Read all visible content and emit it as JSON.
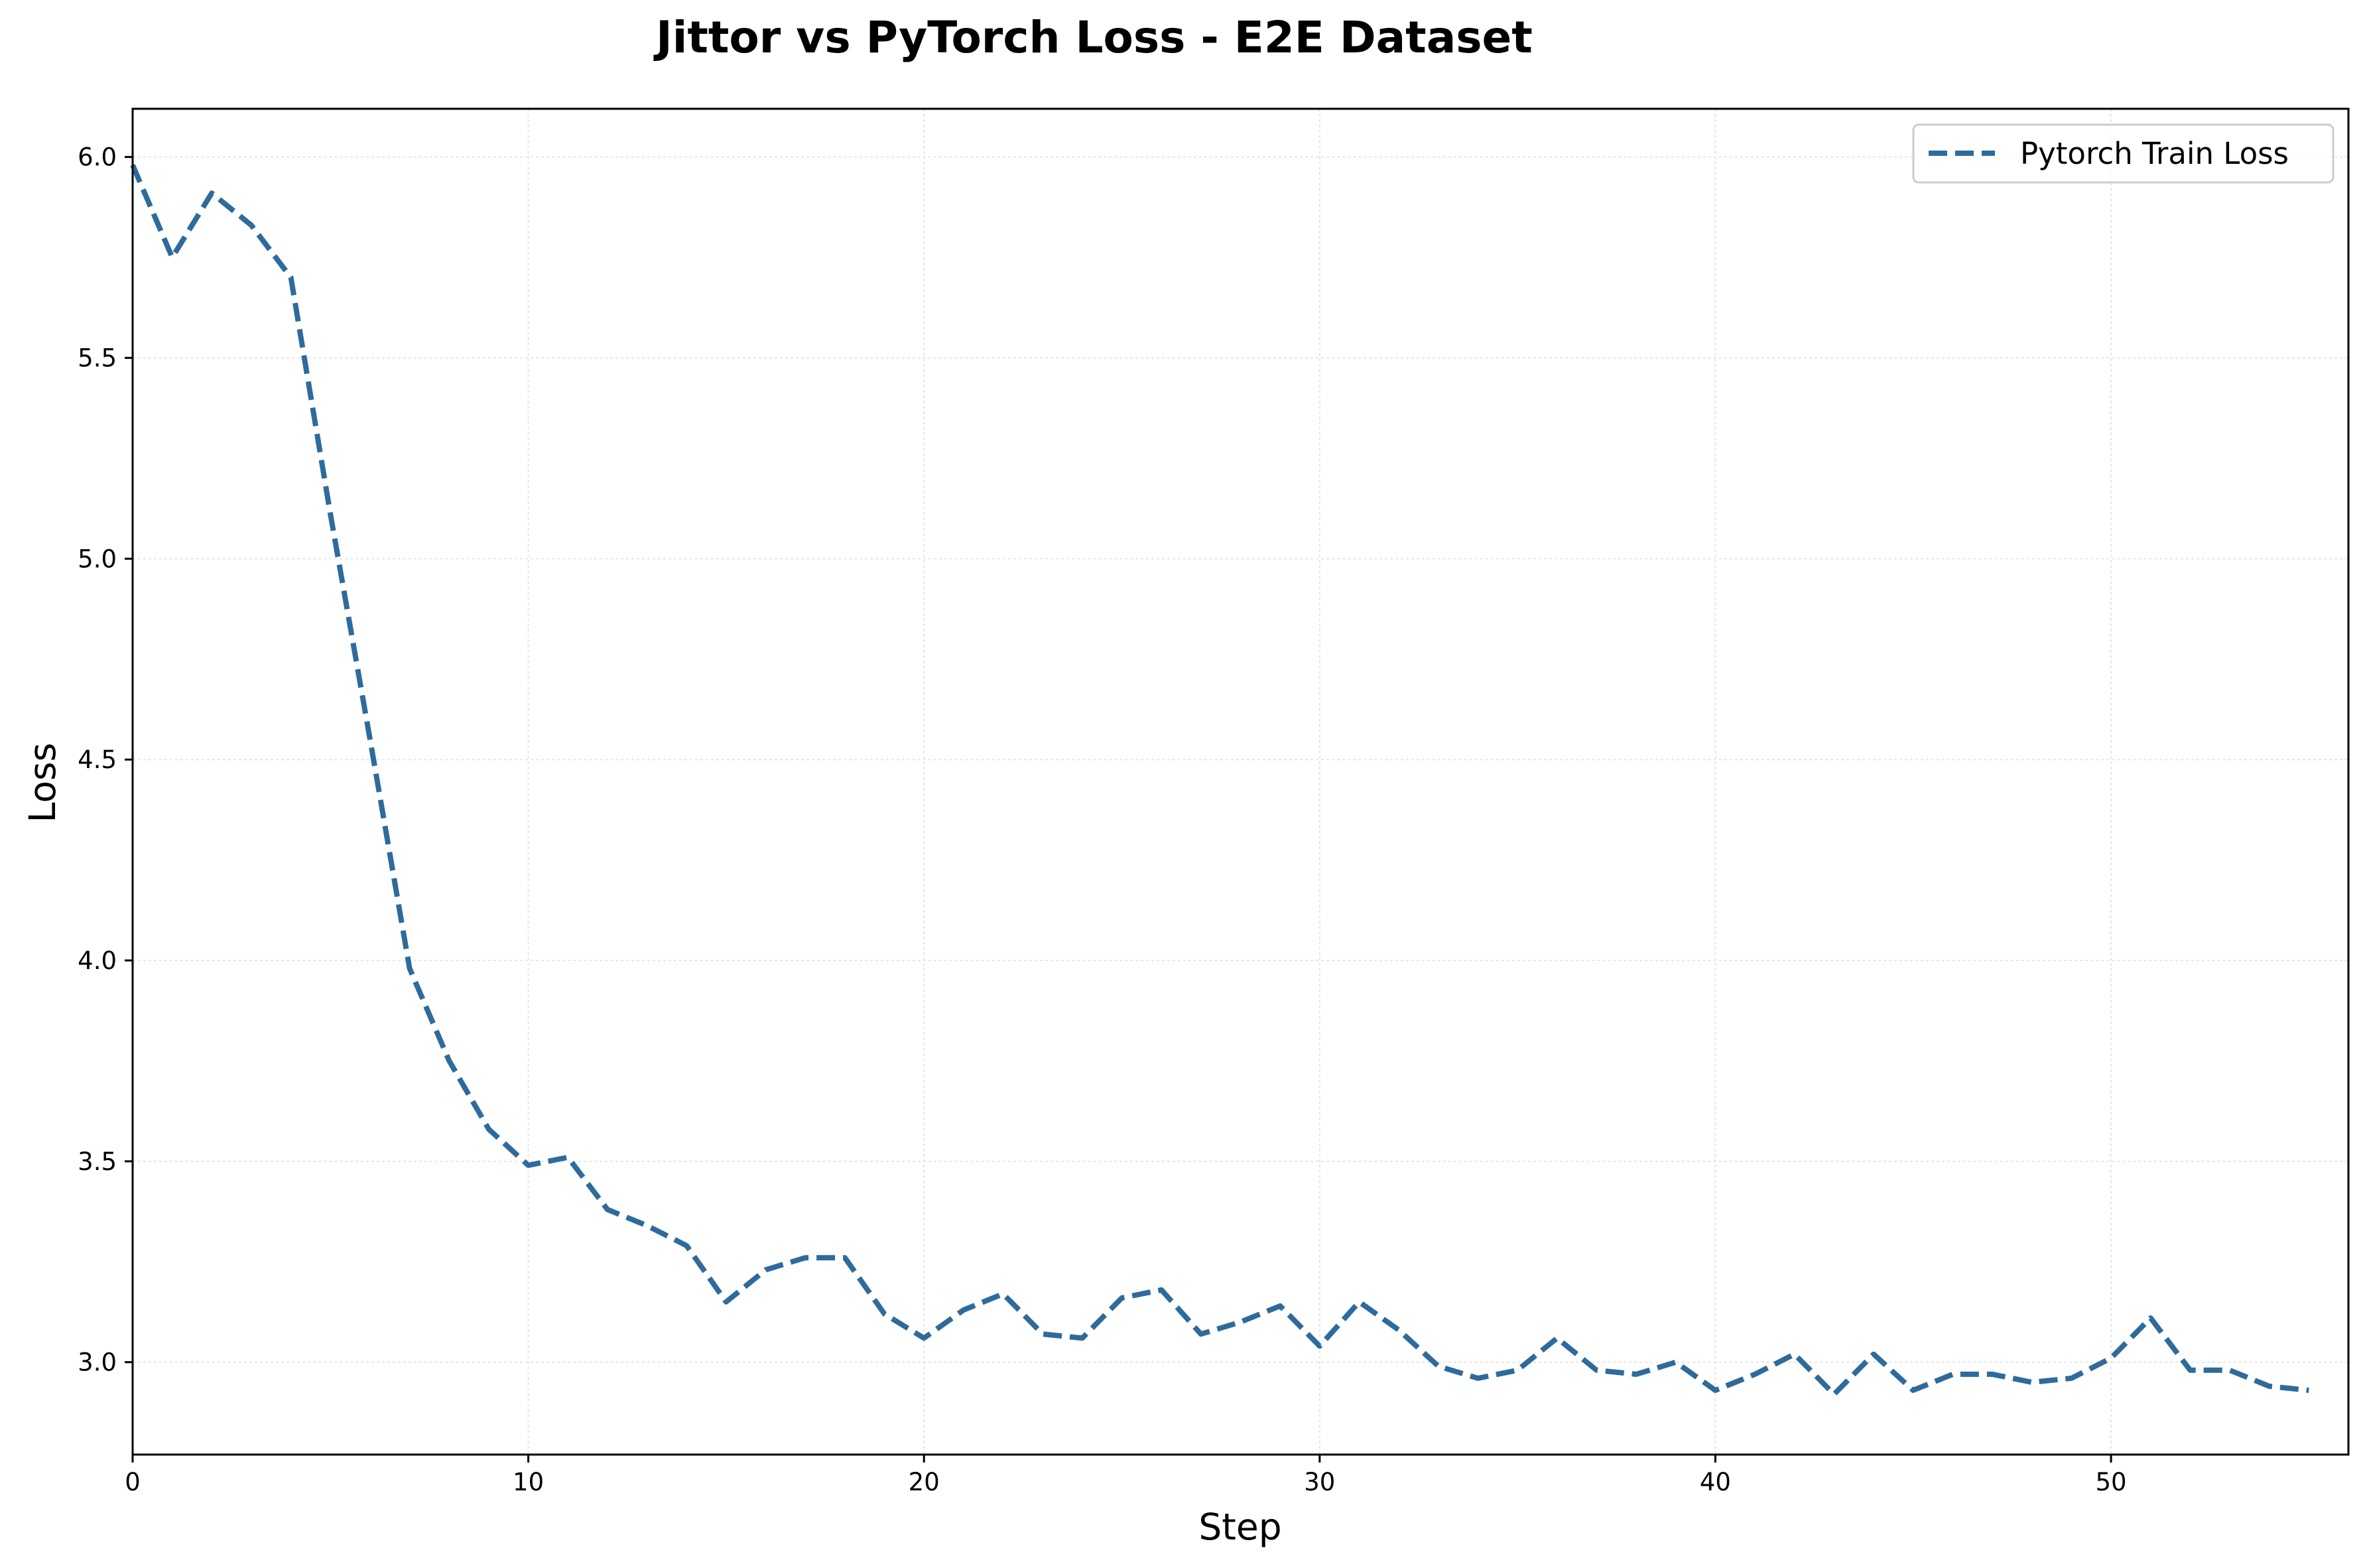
{
  "chart_data": {
    "type": "line",
    "title": "Jittor vs PyTorch Loss - E2E Dataset",
    "xlabel": "Step",
    "ylabel": "Loss",
    "xlim": [
      0,
      56
    ],
    "ylim": [
      2.77,
      6.12
    ],
    "x_ticks": [
      0,
      10,
      20,
      30,
      40,
      50
    ],
    "y_ticks": [
      3.0,
      3.5,
      4.0,
      4.5,
      5.0,
      5.5,
      6.0
    ],
    "grid": true,
    "legend_position": "top-right",
    "series": [
      {
        "name": "Pytorch Train Loss",
        "color": "#2e6b9c",
        "line_style": "dashed",
        "x": [
          0,
          1,
          2,
          3,
          4,
          5,
          6,
          7,
          8,
          9,
          10,
          11,
          12,
          13,
          14,
          15,
          16,
          17,
          18,
          19,
          20,
          21,
          22,
          23,
          24,
          25,
          26,
          27,
          28,
          29,
          30,
          31,
          32,
          33,
          34,
          35,
          36,
          37,
          38,
          39,
          40,
          41,
          42,
          43,
          44,
          45,
          46,
          47,
          48,
          49,
          50,
          51,
          52,
          53,
          54,
          55
        ],
        "y": [
          5.98,
          5.75,
          5.91,
          5.83,
          5.7,
          5.11,
          4.55,
          3.98,
          3.75,
          3.58,
          3.49,
          3.51,
          3.38,
          3.34,
          3.29,
          3.15,
          3.23,
          3.26,
          3.26,
          3.12,
          3.06,
          3.13,
          3.17,
          3.07,
          3.06,
          3.16,
          3.18,
          3.07,
          3.1,
          3.14,
          3.04,
          3.15,
          3.08,
          2.99,
          2.96,
          2.98,
          3.06,
          2.98,
          2.97,
          3.0,
          2.93,
          2.97,
          3.02,
          2.92,
          3.02,
          2.93,
          2.97,
          2.97,
          2.95,
          2.96,
          3.01,
          3.11,
          2.98,
          2.98,
          2.94,
          2.93
        ]
      }
    ]
  }
}
